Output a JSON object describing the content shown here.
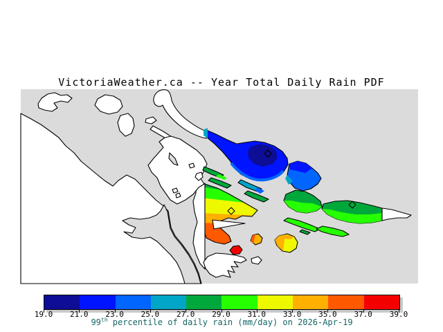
{
  "title": "VictoriaWeather.ca -- Year Total Daily Rain PDF",
  "palette": {
    "sea": "#dbdbdb",
    "land": "#ffffff",
    "coast": "#000000",
    "c19": "#0d0d96",
    "c21": "#0014ff",
    "c23": "#0066ff",
    "c25": "#00a5c8",
    "c27": "#00a83c",
    "c29": "#26ff00",
    "c31": "#eef900",
    "c33": "#ffb000",
    "c35": "#ff5900",
    "c37": "#f50000"
  },
  "colorbar": {
    "ticks": [
      "19.0",
      "21.0",
      "23.0",
      "25.0",
      "27.0",
      "29.0",
      "31.0",
      "33.0",
      "35.0",
      "37.0",
      "39.0"
    ],
    "segments": [
      {
        "range": "19.0-21.0",
        "color": "c19"
      },
      {
        "range": "21.0-23.0",
        "color": "c21"
      },
      {
        "range": "23.0-25.0",
        "color": "c23"
      },
      {
        "range": "25.0-27.0",
        "color": "c25"
      },
      {
        "range": "27.0-29.0",
        "color": "c27"
      },
      {
        "range": "29.0-31.0",
        "color": "c29"
      },
      {
        "range": "31.0-33.0",
        "color": "c31"
      },
      {
        "range": "33.0-35.0",
        "color": "c33"
      },
      {
        "range": "35.0-37.0",
        "color": "c35"
      },
      {
        "range": "37.0-39.0",
        "color": "c37"
      }
    ],
    "caption_num": "99",
    "caption_sup": "th",
    "caption_rest": " percentile of daily rain (mm/day) on 2026-Apr-19",
    "caption_color": "#186464"
  },
  "map": {
    "units": "mm/day",
    "value_bands_shown": [
      "19-21",
      "21-23",
      "23-25",
      "25-27",
      "27-29",
      "29-31",
      "31-33",
      "33-35",
      "35-37",
      "37-39"
    ],
    "markers": [
      {
        "type": "diamond",
        "location": "navy-core-region"
      },
      {
        "type": "diamond",
        "location": "yellow-gradient-region"
      },
      {
        "type": "diamond",
        "location": "green-east-island"
      }
    ]
  }
}
